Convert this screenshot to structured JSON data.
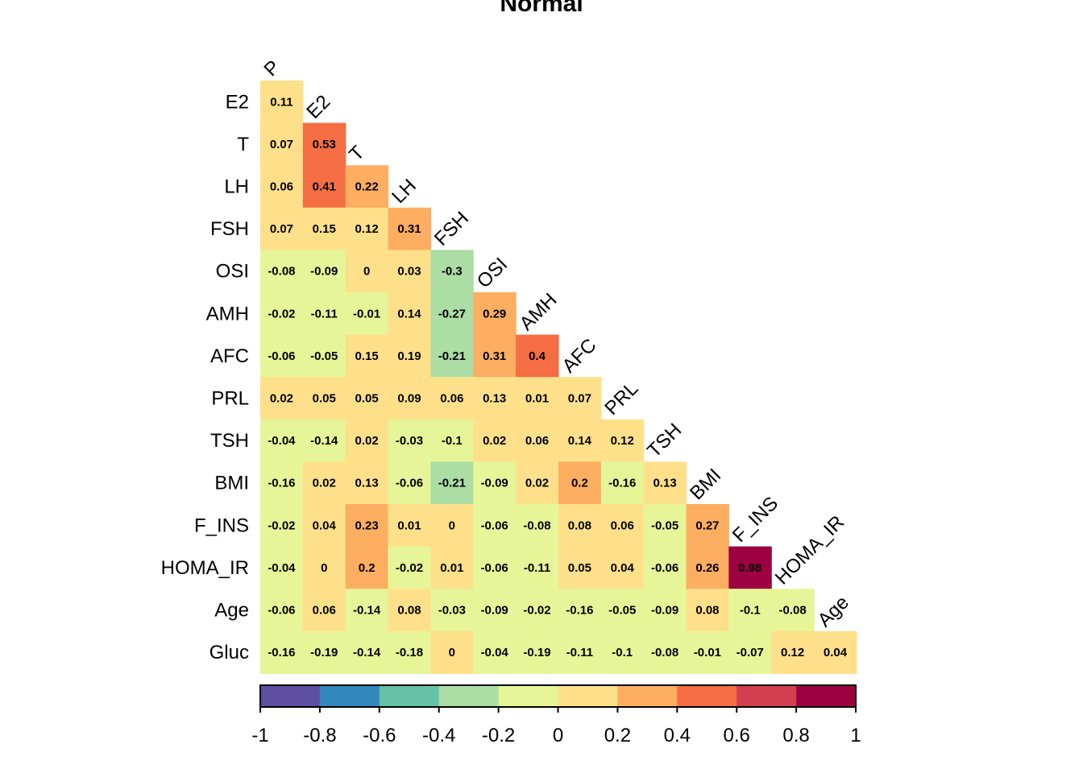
{
  "chart_data": {
    "type": "heatmap",
    "title": "Normal",
    "variables": [
      "P",
      "E2",
      "T",
      "LH",
      "FSH",
      "OSI",
      "AMH",
      "AFC",
      "PRL",
      "TSH",
      "BMI",
      "F_INS",
      "HOMA_IR",
      "Age",
      "Gluc"
    ],
    "row_labels": [
      "E2",
      "T",
      "LH",
      "FSH",
      "OSI",
      "AMH",
      "AFC",
      "PRL",
      "TSH",
      "BMI",
      "F_INS",
      "HOMA_IR",
      "Age",
      "Gluc"
    ],
    "col_labels": [
      "P",
      "E2",
      "T",
      "LH",
      "FSH",
      "OSI",
      "AMH",
      "AFC",
      "PRL",
      "TSH",
      "BMI",
      "F_INS",
      "HOMA_IR",
      "Age"
    ],
    "matrix": [
      [
        "0.11"
      ],
      [
        "0.07",
        "0.53"
      ],
      [
        "0.06",
        "0.41",
        "0.22"
      ],
      [
        "0.07",
        "0.15",
        "0.12",
        "0.31"
      ],
      [
        "-0.08",
        "-0.09",
        "0",
        "0.03",
        "-0.3"
      ],
      [
        "-0.02",
        "-0.11",
        "-0.01",
        "0.14",
        "-0.27",
        "0.29"
      ],
      [
        "-0.06",
        "-0.05",
        "0.15",
        "0.19",
        "-0.21",
        "0.31",
        "0.4"
      ],
      [
        "0.02",
        "0.05",
        "0.05",
        "0.09",
        "0.06",
        "0.13",
        "0.01",
        "0.07"
      ],
      [
        "-0.04",
        "-0.14",
        "0.02",
        "-0.03",
        "-0.1",
        "0.02",
        "0.06",
        "0.14",
        "0.12"
      ],
      [
        "-0.16",
        "0.02",
        "0.13",
        "-0.06",
        "-0.21",
        "-0.09",
        "0.02",
        "0.2",
        "-0.16",
        "0.13"
      ],
      [
        "-0.02",
        "0.04",
        "0.23",
        "0.01",
        "0",
        "-0.06",
        "-0.08",
        "0.08",
        "0.06",
        "-0.05",
        "0.27"
      ],
      [
        "-0.04",
        "0",
        "0.2",
        "-0.02",
        "0.01",
        "-0.06",
        "-0.11",
        "0.05",
        "0.04",
        "-0.06",
        "0.26",
        "0.98"
      ],
      [
        "-0.06",
        "0.06",
        "-0.14",
        "0.08",
        "-0.03",
        "-0.09",
        "-0.02",
        "-0.16",
        "-0.05",
        "-0.09",
        "0.08",
        "-0.1",
        "-0.08"
      ],
      [
        "-0.16",
        "-0.19",
        "-0.14",
        "-0.18",
        "0",
        "-0.04",
        "-0.19",
        "-0.11",
        "-0.1",
        "-0.08",
        "-0.01",
        "-0.07",
        "0.12",
        "0.04"
      ]
    ],
    "colorbar": {
      "range": [
        -1,
        1
      ],
      "ticks": [
        "-1",
        "-0.8",
        "-0.6",
        "-0.4",
        "-0.2",
        "0",
        "0.2",
        "0.4",
        "0.6",
        "0.8",
        "1"
      ],
      "colors": [
        "#5E4FA2",
        "#3288BD",
        "#66C2A5",
        "#ABDDA4",
        "#E6F598",
        "#FEE08B",
        "#FDAE61",
        "#F46D43",
        "#D53E4F",
        "#9E0142"
      ]
    }
  }
}
